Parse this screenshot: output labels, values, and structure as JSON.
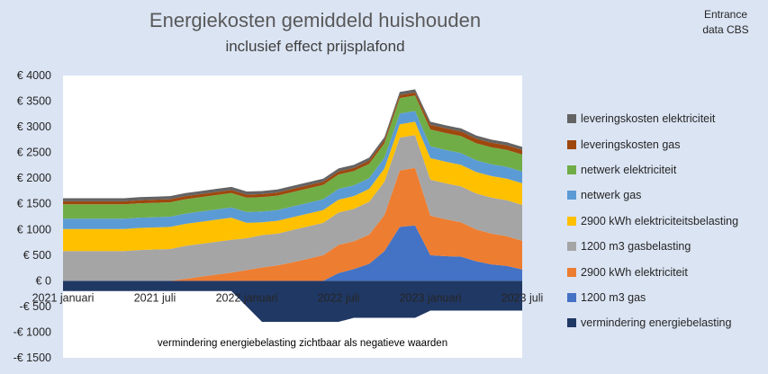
{
  "header": {
    "title": "Energiekosten gemiddeld huishouden",
    "subtitle": "inclusief effect prijsplafond",
    "source_line1": "Entrance",
    "source_line2": "data CBS"
  },
  "chart_data": {
    "type": "area",
    "stacked": true,
    "title": "Energiekosten gemiddeld huishouden",
    "subtitle": "inclusief effect prijsplafond",
    "annotation": "vermindering energiebelasting zichtbaar als negatieve waarden",
    "ylim": [
      -1500,
      4000
    ],
    "yticks": [
      -1500,
      -1000,
      -500,
      0,
      500,
      1000,
      1500,
      2000,
      2500,
      3000,
      3500,
      4000
    ],
    "ytick_labels": [
      "-€ 1500",
      "-€ 1000",
      "-€ 500",
      "€ 0",
      "€ 500",
      "€ 1000",
      "€ 1500",
      "€ 2000",
      "€ 2500",
      "€ 3000",
      "€ 3500",
      "€ 4000"
    ],
    "x": [
      "2021-01",
      "2021-02",
      "2021-03",
      "2021-04",
      "2021-05",
      "2021-06",
      "2021-07",
      "2021-08",
      "2021-09",
      "2021-10",
      "2021-11",
      "2021-12",
      "2022-01",
      "2022-02",
      "2022-03",
      "2022-04",
      "2022-05",
      "2022-06",
      "2022-07",
      "2022-08",
      "2022-09",
      "2022-10",
      "2022-11",
      "2022-12",
      "2023-01",
      "2023-02",
      "2023-03",
      "2023-04",
      "2023-05",
      "2023-06",
      "2023-07"
    ],
    "xtick_labels": [
      {
        "index": 0,
        "label": "2021 januari"
      },
      {
        "index": 6,
        "label": "2021 juli"
      },
      {
        "index": 12,
        "label": "2022 januari"
      },
      {
        "index": 18,
        "label": "2022 juli"
      },
      {
        "index": 24,
        "label": "2023 januari"
      },
      {
        "index": 30,
        "label": "2023 juli"
      }
    ],
    "grid": false,
    "legend_position": "right",
    "negative_series": {
      "name": "vermindering energiebelasting",
      "color": "#203864",
      "values": [
        -200,
        -200,
        -200,
        -200,
        -200,
        -200,
        -200,
        -200,
        -200,
        -200,
        -200,
        -200,
        -500,
        -800,
        -800,
        -800,
        -800,
        -800,
        -800,
        -720,
        -720,
        -720,
        -720,
        -720,
        -580,
        -580,
        -580,
        -580,
        -580,
        -580,
        -580
      ]
    },
    "series": [
      {
        "name": "1200 m3 gas",
        "color": "#4472c4",
        "values": [
          0,
          0,
          0,
          0,
          0,
          0,
          0,
          0,
          0,
          0,
          0,
          0,
          0,
          0,
          0,
          0,
          0,
          0,
          150,
          230,
          330,
          580,
          1050,
          1080,
          500,
          480,
          470,
          380,
          320,
          290,
          220
        ]
      },
      {
        "name": "2900 kWh elektriciteit",
        "color": "#ed7d31",
        "values": [
          0,
          0,
          0,
          0,
          0,
          0,
          0,
          0,
          40,
          80,
          120,
          160,
          210,
          260,
          300,
          360,
          430,
          500,
          550,
          540,
          570,
          700,
          1100,
          1120,
          770,
          720,
          670,
          620,
          600,
          580,
          560
        ]
      },
      {
        "name": "1200 m3 gasbelasting",
        "color": "#a5a5a5",
        "values": [
          580,
          580,
          580,
          580,
          580,
          600,
          610,
          620,
          640,
          640,
          640,
          640,
          620,
          630,
          620,
          630,
          630,
          630,
          630,
          630,
          640,
          650,
          640,
          640,
          700,
          700,
          700,
          700,
          700,
          700,
          700
        ]
      },
      {
        "name": "2900 kWh elektriciteitsbelasting",
        "color": "#ffc000",
        "values": [
          430,
          430,
          430,
          430,
          430,
          430,
          430,
          430,
          430,
          430,
          430,
          430,
          300,
          250,
          250,
          250,
          250,
          250,
          250,
          250,
          250,
          260,
          260,
          260,
          420,
          420,
          420,
          420,
          420,
          420,
          420
        ]
      },
      {
        "name": "netwerk gas",
        "color": "#5b9bd5",
        "values": [
          200,
          200,
          200,
          200,
          200,
          200,
          200,
          200,
          200,
          200,
          200,
          200,
          210,
          210,
          210,
          210,
          210,
          210,
          210,
          210,
          210,
          210,
          210,
          210,
          230,
          230,
          230,
          230,
          230,
          230,
          230
        ]
      },
      {
        "name": "netwerk elektriciteit",
        "color": "#70ad47",
        "values": [
          280,
          280,
          280,
          280,
          280,
          280,
          280,
          280,
          280,
          280,
          280,
          280,
          280,
          280,
          280,
          280,
          280,
          280,
          280,
          280,
          280,
          280,
          300,
          300,
          330,
          330,
          330,
          330,
          330,
          330,
          330
        ]
      },
      {
        "name": "leveringskosten gas",
        "color": "#9e480e",
        "values": [
          60,
          60,
          60,
          60,
          60,
          60,
          60,
          60,
          60,
          60,
          60,
          60,
          60,
          60,
          60,
          60,
          60,
          60,
          60,
          60,
          60,
          60,
          60,
          60,
          90,
          90,
          90,
          90,
          90,
          90,
          90
        ]
      },
      {
        "name": "leveringskosten elektriciteit",
        "color": "#636363",
        "values": [
          60,
          60,
          60,
          60,
          60,
          60,
          60,
          60,
          60,
          60,
          60,
          60,
          60,
          60,
          60,
          60,
          60,
          60,
          60,
          60,
          60,
          60,
          60,
          60,
          60,
          60,
          60,
          60,
          60,
          60,
          60
        ]
      }
    ],
    "legend_order": [
      "leveringskosten elektriciteit",
      "leveringskosten gas",
      "netwerk elektriciteit",
      "netwerk gas",
      "2900 kWh elektriciteitsbelasting",
      "1200 m3 gasbelasting",
      "2900 kWh elektriciteit",
      "1200 m3 gas",
      "vermindering energiebelasting"
    ]
  }
}
